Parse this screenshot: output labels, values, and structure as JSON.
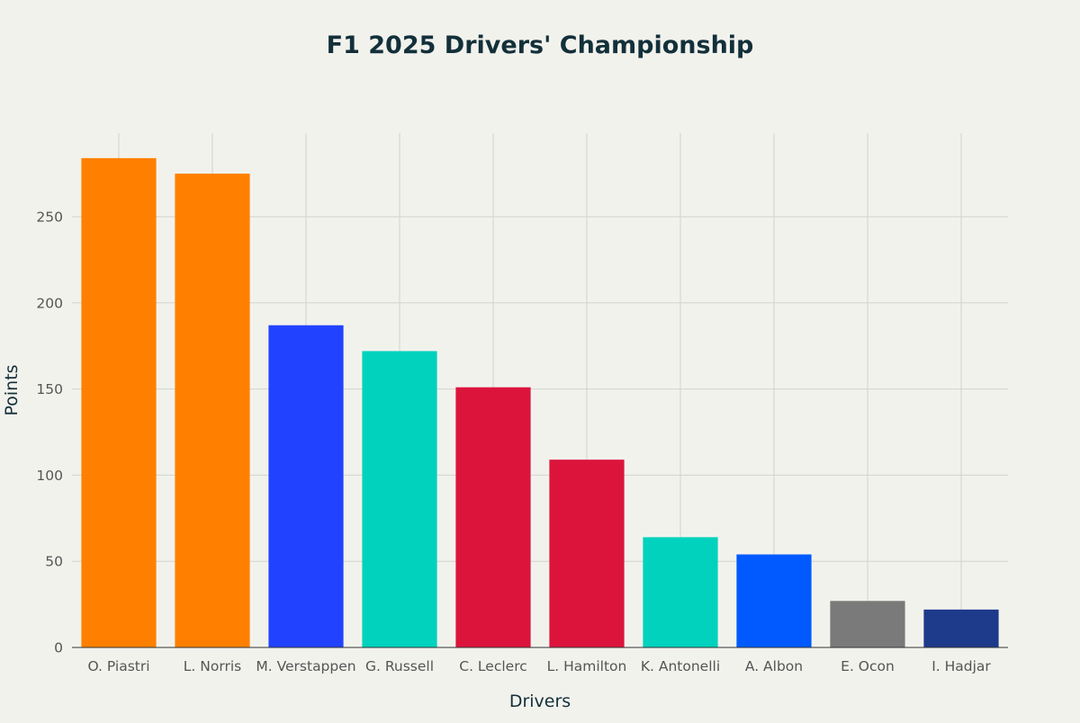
{
  "chart_data": {
    "type": "bar",
    "title": "F1 2025 Drivers' Championship",
    "xlabel": "Drivers",
    "ylabel": "Points",
    "ylim": [
      0,
      300
    ],
    "yticks": [
      0,
      50,
      100,
      150,
      200,
      250
    ],
    "grid": true,
    "categories": [
      "O. Piastri",
      "L. Norris",
      "M. Verstappen",
      "G. Russell",
      "C. Leclerc",
      "L. Hamilton",
      "K. Antonelli",
      "A. Albon",
      "E. Ocon",
      "I. Hadjar"
    ],
    "values": [
      284,
      275,
      187,
      172,
      151,
      109,
      64,
      54,
      27,
      22
    ],
    "colors": [
      "#ff8000",
      "#ff8000",
      "#2142ff",
      "#00d2be",
      "#dc143c",
      "#dc143c",
      "#00d2be",
      "#005aff",
      "#7a7a7a",
      "#1e3a8a"
    ]
  }
}
